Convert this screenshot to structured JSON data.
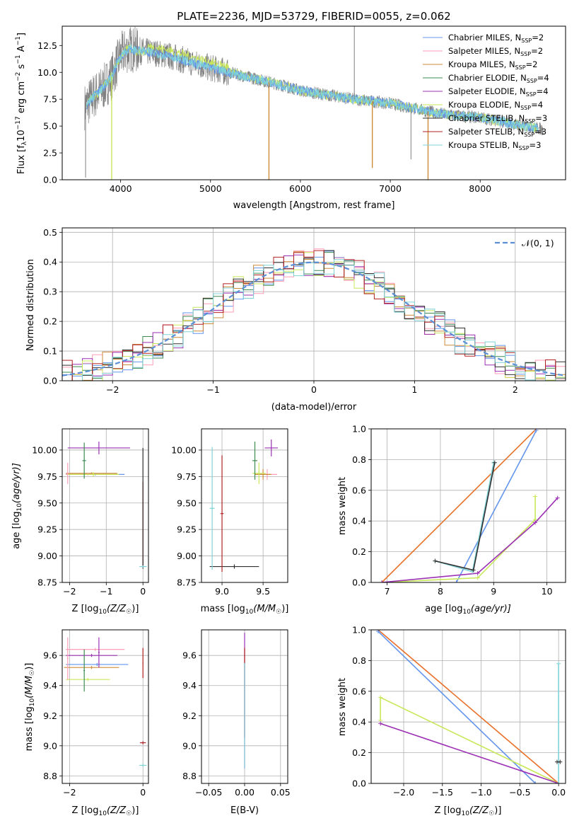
{
  "colors": {
    "chabrier_miles": "#6495ed",
    "salpeter_miles": "#ff9eb5",
    "kroupa_miles": "#cd8b3a",
    "chabrier_elodie": "#3c8c50",
    "salpeter_elodie": "#9b30b4",
    "kroupa_elodie": "#c8e85a",
    "chabrier_stelib": "#303030",
    "salpeter_stelib": "#b22222",
    "kroupa_stelib": "#7fd3d8",
    "observed": "#808080",
    "normal": "#5b8fd6",
    "orange": "#e8702a",
    "grid": "#b0b0b0"
  },
  "chart_data": [
    {
      "id": "spectrum",
      "type": "line",
      "title": "PLATE=2236, MJD=53729, FIBERID=0055, z=0.062",
      "xlabel": "wavelength [Angstrom, rest frame]",
      "ylabel_parts": [
        "Flux [f",
        "λ",
        "10",
        "−17",
        " erg cm",
        "−2",
        " s",
        "−1",
        " A",
        "−1",
        "]"
      ],
      "xlim": [
        3350,
        8950
      ],
      "ylim": [
        0,
        14.3
      ],
      "xticks": [
        4000,
        5000,
        6000,
        7000,
        8000
      ],
      "yticks": [
        0.0,
        2.5,
        5.0,
        7.5,
        10.0,
        12.5
      ],
      "grid": false,
      "legend_position": "top-right",
      "legend": [
        {
          "main": "Chabrier MILES, N",
          "sub": "SSP",
          "tail": "=2",
          "color_key": "chabrier_miles"
        },
        {
          "main": "Salpeter MILES, N",
          "sub": "SSP",
          "tail": "=2",
          "color_key": "salpeter_miles"
        },
        {
          "main": "Kroupa MILES, N",
          "sub": "SSP",
          "tail": "=2",
          "color_key": "kroupa_miles"
        },
        {
          "main": "Chabrier ELODIE, N",
          "sub": "SSP",
          "tail": "=4",
          "color_key": "chabrier_elodie"
        },
        {
          "main": "Salpeter ELODIE, N",
          "sub": "SSP",
          "tail": "=4",
          "color_key": "salpeter_elodie"
        },
        {
          "main": "Kroupa ELODIE, N",
          "sub": "SSP",
          "tail": "=4",
          "color_key": "kroupa_elodie"
        },
        {
          "main": "Chabrier STELIB, N",
          "sub": "SSP",
          "tail": "=3",
          "color_key": "chabrier_stelib"
        },
        {
          "main": "Salpeter STELIB, N",
          "sub": "SSP",
          "tail": "=3",
          "color_key": "salpeter_stelib"
        },
        {
          "main": "Kroupa STELIB, N",
          "sub": "SSP",
          "tail": "=3",
          "color_key": "kroupa_stelib"
        }
      ],
      "observed_trend": {
        "x": [
          3600,
          3700,
          3800,
          3900,
          4000,
          4100,
          4200,
          4400,
          4600,
          4800,
          5000,
          5200,
          5500,
          5800,
          6000,
          6300,
          6600,
          7000,
          7400,
          7600,
          7800,
          8000,
          8300,
          8500,
          8700
        ],
        "y": [
          6.8,
          7.8,
          8.5,
          9.6,
          11.6,
          12.2,
          12.0,
          11.8,
          11.4,
          10.9,
          10.4,
          10.0,
          9.4,
          8.8,
          8.3,
          7.9,
          7.5,
          7.1,
          6.4,
          6.1,
          5.9,
          5.8,
          5.3,
          5.0,
          4.7
        ]
      },
      "model_spikes": [
        {
          "x": 3900,
          "y": 0.0,
          "series": "kroupa_elodie"
        },
        {
          "x": 5650,
          "y": 0.0,
          "series": "kroupa_miles"
        },
        {
          "x": 6800,
          "y": 1.1,
          "series": "kroupa_miles"
        },
        {
          "x": 7420,
          "y": 0.0,
          "series": "kroupa_miles"
        }
      ],
      "observed_spikes": [
        {
          "x": 3610,
          "y": 0.2
        },
        {
          "x": 6600,
          "y": 14.3
        },
        {
          "x": 7230,
          "y": 1.9
        }
      ]
    },
    {
      "id": "residuals",
      "type": "histogram",
      "xlabel": "(data-model)/error",
      "ylabel": "Normed distribution",
      "xlim": [
        -2.5,
        2.5
      ],
      "ylim": [
        0,
        0.515
      ],
      "xticks": [
        -2,
        -1,
        0,
        1,
        2
      ],
      "yticks": [
        0.0,
        0.1,
        0.2,
        0.3,
        0.4,
        0.5
      ],
      "grid": true,
      "legend_position": "top-right",
      "legend": [
        {
          "label": "𝒩(0, 1)",
          "color_key": "normal"
        }
      ],
      "bin_width": 0.1
    },
    {
      "id": "age-vs-Z",
      "type": "errorbar",
      "xlabel": "Z [log10(Z/Z☉)]",
      "xlabel_parts": [
        "Z [log",
        "10",
        "(Z/Z",
        "☉",
        ")]"
      ],
      "ylabel_parts": [
        "age  [log",
        "10",
        "(age/yr)]"
      ],
      "xlim": [
        -2.2,
        0.15
      ],
      "ylim": [
        8.75,
        10.2
      ],
      "xticks": [
        -2,
        -1,
        0
      ],
      "yticks": [
        8.75,
        9.0,
        9.25,
        9.5,
        9.75,
        10.0
      ],
      "grid": true,
      "points": [
        {
          "x": -1.3,
          "xerr": 0.8,
          "y": 9.77,
          "yerr": 0.01,
          "color_key": "chabrier_miles"
        },
        {
          "x": -1.4,
          "xerr": 0.7,
          "y": 9.78,
          "yerr": 0.01,
          "color_key": "kroupa_miles"
        },
        {
          "x": -1.5,
          "xerr": 0.6,
          "y": 9.77,
          "yerr": 0.01,
          "color_key": "salpeter_miles"
        },
        {
          "x": -1.35,
          "xerr": 0.7,
          "y": 9.77,
          "yerr": 0.02,
          "color_key": "kroupa_elodie"
        },
        {
          "x": -1.2,
          "xerr": 0.85,
          "y": 10.02,
          "yerr": 0.06,
          "color_key": "salpeter_elodie"
        },
        {
          "x": -1.6,
          "xerr": 0.05,
          "y": 9.9,
          "yerr": 0.17,
          "color_key": "chabrier_elodie"
        },
        {
          "x": -2.05,
          "xerr": 0.02,
          "y": 9.78,
          "yerr": 0.1,
          "color_key": "salpeter_miles"
        },
        {
          "x": 0.0,
          "xerr": 0.01,
          "y": 9.3,
          "yerr": 0.4,
          "color_key": "salpeter_stelib"
        },
        {
          "x": 0.0,
          "xerr": 0.01,
          "y": 9.45,
          "yerr": 0.57,
          "color_key": "chabrier_stelib"
        },
        {
          "x": 0.0,
          "xerr": 0.1,
          "y": 8.9,
          "yerr": 0.01,
          "color_key": "kroupa_stelib"
        }
      ]
    },
    {
      "id": "age-vs-mass",
      "type": "errorbar",
      "xlabel_parts": [
        "mass [log",
        "10",
        "(M/M",
        "☉",
        ")]"
      ],
      "xlim": [
        8.75,
        9.8
      ],
      "ylim": [
        8.75,
        10.2
      ],
      "xticks": [
        9.0,
        9.5
      ],
      "yticks": [
        8.75,
        9.0,
        9.25,
        9.5,
        9.75,
        10.0
      ],
      "grid": true,
      "points": [
        {
          "x": 9.55,
          "xerr": 0.12,
          "y": 9.77,
          "yerr": 0.05,
          "color_key": "salpeter_miles"
        },
        {
          "x": 9.5,
          "xerr": 0.1,
          "y": 9.77,
          "yerr": 0.05,
          "color_key": "kroupa_miles"
        },
        {
          "x": 9.45,
          "xerr": 0.08,
          "y": 9.78,
          "yerr": 0.1,
          "color_key": "kroupa_elodie"
        },
        {
          "x": 9.4,
          "xerr": 0.03,
          "y": 9.9,
          "yerr": 0.18,
          "color_key": "chabrier_elodie"
        },
        {
          "x": 9.6,
          "xerr": 0.08,
          "y": 10.02,
          "yerr": 0.08,
          "color_key": "salpeter_elodie"
        },
        {
          "x": 9.15,
          "xerr": 0.3,
          "y": 8.9,
          "yerr": 0.02,
          "color_key": "chabrier_stelib"
        },
        {
          "x": 9.0,
          "xerr": 0.02,
          "y": 9.4,
          "yerr": 0.55,
          "color_key": "salpeter_stelib"
        },
        {
          "x": 8.88,
          "xerr": 0.03,
          "y": 9.45,
          "yerr": 0.58,
          "color_key": "kroupa_stelib"
        }
      ]
    },
    {
      "id": "weight-vs-age",
      "type": "line",
      "xlabel_parts": [
        "age  [log",
        "10",
        "(age/yr)]"
      ],
      "ylabel": "mass weight",
      "xlim": [
        6.7,
        10.35
      ],
      "ylim": [
        0,
        1.0
      ],
      "xticks": [
        7,
        8,
        9,
        10
      ],
      "yticks": [
        0.0,
        0.2,
        0.4,
        0.6,
        0.8,
        1.0
      ],
      "grid": true,
      "series": [
        {
          "color_key": "orange",
          "x": [
            6.9,
            9.8
          ],
          "y": [
            0.0,
            1.0
          ]
        },
        {
          "color_key": "chabrier_miles",
          "x": [
            8.3,
            9.8
          ],
          "y": [
            0.0,
            0.99
          ]
        },
        {
          "color_key": "kroupa_elodie",
          "x": [
            6.9,
            8.7,
            9.78,
            9.78
          ],
          "y": [
            0.0,
            0.03,
            0.41,
            0.56
          ]
        },
        {
          "color_key": "salpeter_elodie",
          "x": [
            6.9,
            8.7,
            9.78,
            10.2
          ],
          "y": [
            0.0,
            0.06,
            0.39,
            0.55
          ]
        },
        {
          "color_key": "kroupa_stelib",
          "x": [
            7.9,
            8.6,
            9.0,
            9.0
          ],
          "y": [
            0.14,
            0.07,
            0.78,
            0.78
          ]
        },
        {
          "color_key": "chabrier_stelib",
          "x": [
            7.9,
            8.62,
            9.02
          ],
          "y": [
            0.14,
            0.08,
            0.78
          ]
        }
      ]
    },
    {
      "id": "mass-vs-Z",
      "type": "errorbar",
      "xlabel_parts": [
        "Z [log",
        "10",
        "(Z/Z",
        "☉",
        ")]"
      ],
      "ylabel_parts": [
        "mass [log",
        "10",
        "(M/M",
        "☉",
        ")]"
      ],
      "xlim": [
        -2.2,
        0.15
      ],
      "ylim": [
        8.75,
        9.77
      ],
      "xticks": [
        -2,
        0
      ],
      "yticks": [
        8.8,
        9.0,
        9.2,
        9.4,
        9.6
      ],
      "grid": true,
      "points": [
        {
          "x": -1.3,
          "xerr": 0.8,
          "y": 9.64,
          "yerr": 0.01,
          "color_key": "salpeter_miles"
        },
        {
          "x": -1.4,
          "xerr": 0.7,
          "y": 9.6,
          "yerr": 0.01,
          "color_key": "salpeter_elodie"
        },
        {
          "x": -1.25,
          "xerr": 0.85,
          "y": 9.54,
          "yerr": 0.01,
          "color_key": "chabrier_miles"
        },
        {
          "x": -1.4,
          "xerr": 0.75,
          "y": 9.52,
          "yerr": 0.01,
          "color_key": "kroupa_miles"
        },
        {
          "x": -1.5,
          "xerr": 0.6,
          "y": 9.44,
          "yerr": 0.01,
          "color_key": "kroupa_elodie"
        },
        {
          "x": -1.2,
          "xerr": 0.02,
          "y": 9.62,
          "yerr": 0.1,
          "color_key": "salpeter_elodie"
        },
        {
          "x": -1.6,
          "xerr": 0.02,
          "y": 9.5,
          "yerr": 0.14,
          "color_key": "chabrier_elodie"
        },
        {
          "x": -2.05,
          "xerr": 0.02,
          "y": 9.58,
          "yerr": 0.14,
          "color_key": "salpeter_miles"
        },
        {
          "x": 0.0,
          "xerr": 0.08,
          "y": 9.02,
          "yerr": 0.01,
          "color_key": "salpeter_stelib"
        },
        {
          "x": 0.0,
          "xerr": 0.1,
          "y": 8.87,
          "yerr": 0.01,
          "color_key": "kroupa_stelib"
        },
        {
          "x": 0.0,
          "xerr": 0.01,
          "y": 9.55,
          "yerr": 0.1,
          "color_key": "salpeter_stelib"
        }
      ]
    },
    {
      "id": "mass-vs-ebv",
      "type": "errorbar",
      "xlabel": "E(B-V)",
      "xlim": [
        -0.06,
        0.06
      ],
      "ylim": [
        8.75,
        9.77
      ],
      "xticks": [
        -0.05,
        0.0,
        0.05
      ],
      "xtick_labels": [
        "−0.05",
        "0.00",
        "0.05"
      ],
      "yticks": [
        8.8,
        9.0,
        9.2,
        9.4,
        9.6
      ],
      "grid": true,
      "points": [
        {
          "x": 0.0,
          "xerr": 0.0,
          "y": 9.3,
          "yerr": 0.45,
          "color_key": "salpeter_elodie"
        },
        {
          "x": 0.0,
          "xerr": 0.0,
          "y": 9.35,
          "yerr": 0.3,
          "color_key": "salpeter_stelib"
        },
        {
          "x": 0.0,
          "xerr": 0.0,
          "y": 9.2,
          "yerr": 0.35,
          "color_key": "kroupa_stelib"
        }
      ]
    },
    {
      "id": "weight-vs-Z",
      "type": "line",
      "xlabel_parts": [
        "Z [log",
        "10",
        "(Z/Z",
        "☉",
        ")]"
      ],
      "ylabel": "mass weight",
      "xlim": [
        -2.42,
        0.09
      ],
      "ylim": [
        0,
        1.0
      ],
      "xticks": [
        -2.0,
        -1.5,
        -1.0,
        -0.5,
        0.0
      ],
      "xtick_labels": [
        "−2.0",
        "−1.5",
        "−1.0",
        "−0.5",
        "0.0"
      ],
      "yticks": [
        0.0,
        0.2,
        0.4,
        0.6,
        0.8,
        1.0
      ],
      "grid": true,
      "series": [
        {
          "color_key": "orange",
          "x": [
            -2.33,
            0.0
          ],
          "y": [
            1.0,
            0.0
          ]
        },
        {
          "color_key": "chabrier_miles",
          "x": [
            -2.33,
            -0.3
          ],
          "y": [
            0.99,
            0.0
          ]
        },
        {
          "color_key": "kroupa_elodie",
          "x": [
            -2.3,
            -2.3,
            0.0
          ],
          "y": [
            0.41,
            0.56,
            0.0
          ]
        },
        {
          "color_key": "salpeter_elodie",
          "x": [
            -2.3,
            0.0
          ],
          "y": [
            0.39,
            0.0
          ]
        },
        {
          "color_key": "kroupa_stelib",
          "x": [
            0.0,
            0.0
          ],
          "y": [
            0.0,
            0.78
          ]
        },
        {
          "color_key": "chabrier_stelib",
          "x": [
            -0.02,
            0.02
          ],
          "y": [
            0.14,
            0.14
          ]
        }
      ]
    }
  ]
}
